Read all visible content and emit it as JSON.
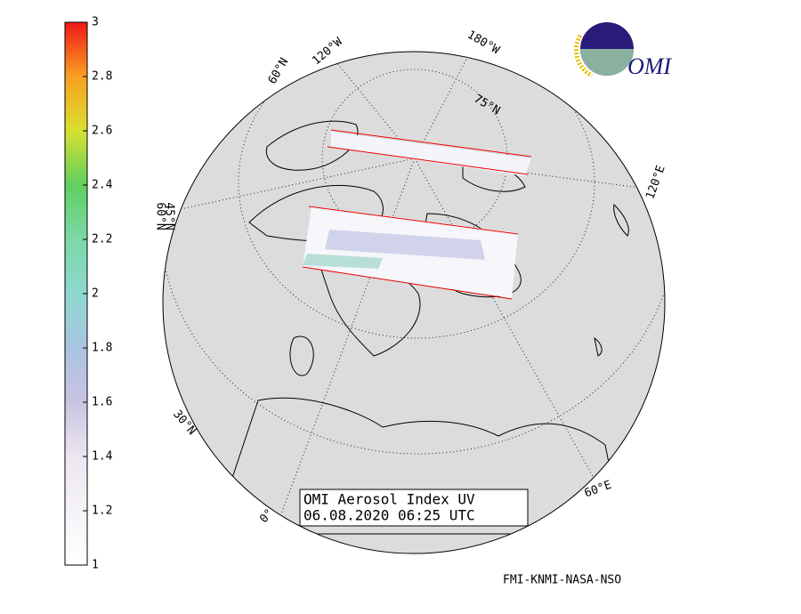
{
  "colorbar": {
    "range": [
      1,
      3
    ],
    "ticks": [
      1,
      1.2,
      1.4,
      1.6,
      1.8,
      2,
      2.2,
      2.4,
      2.6,
      2.8,
      3
    ]
  },
  "map": {
    "graticule_labels": [
      "60°N",
      "120°W",
      "180°W",
      "75°N",
      "120°E",
      "60°N",
      "45°N",
      "30°N",
      "0°",
      "60°E"
    ]
  },
  "title": {
    "line1": "OMI Aerosol Index UV",
    "line2": "06.08.2020 06:25 UTC"
  },
  "credit": "FMI-KNMI-NASA-NSO",
  "logo": "OMI"
}
